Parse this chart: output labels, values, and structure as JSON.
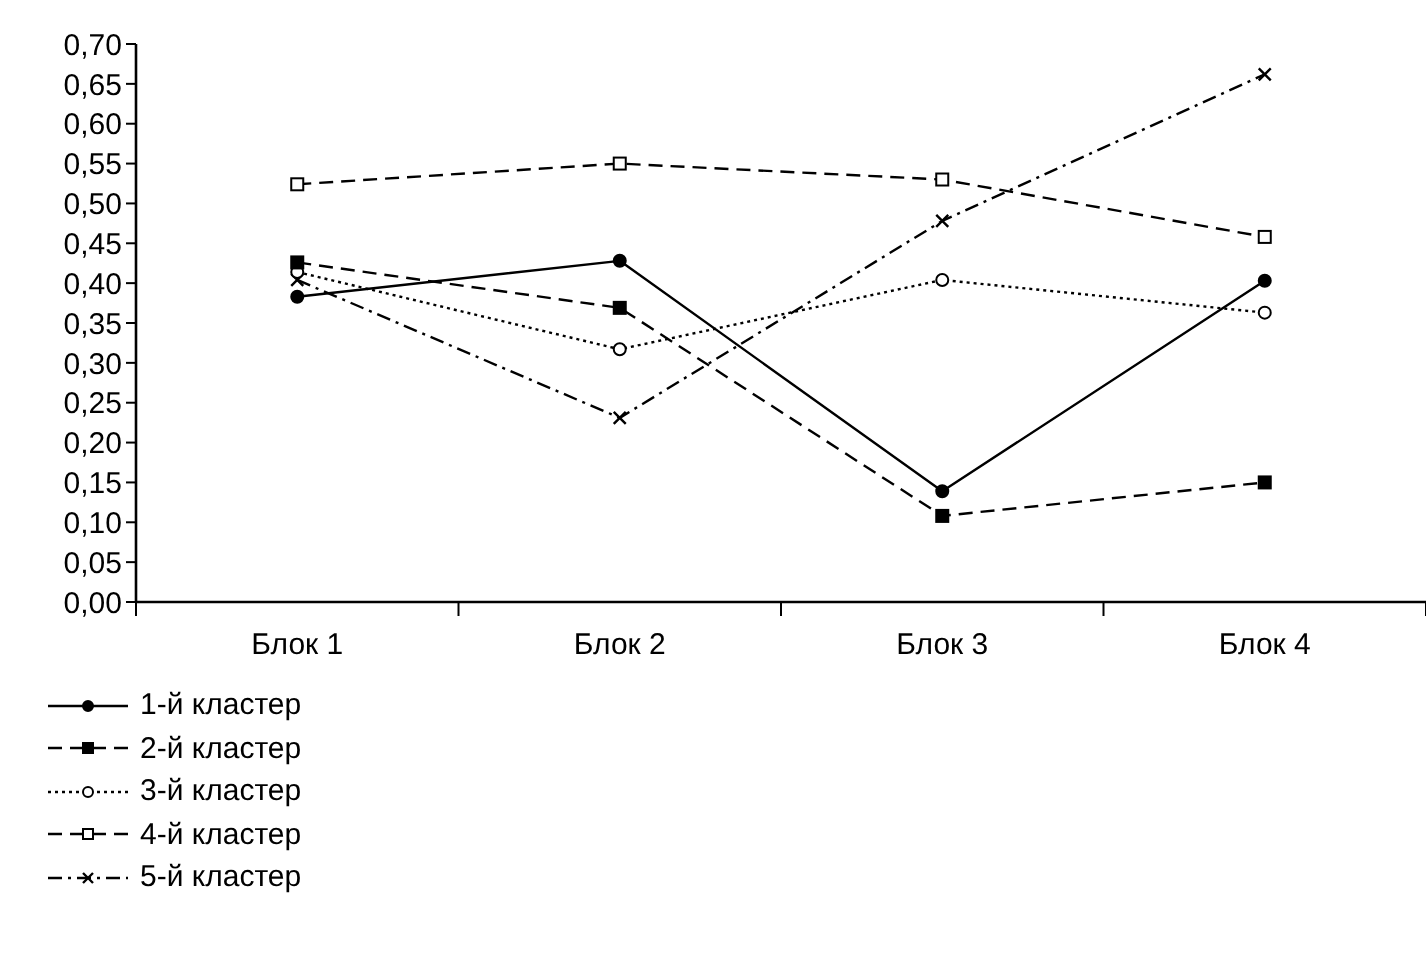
{
  "chart_data": {
    "type": "line",
    "categories": [
      "Блок 1",
      "Блок 2",
      "Блок 3",
      "Блок 4"
    ],
    "ylim": [
      0,
      0.7
    ],
    "yticks": [
      {
        "value": 0,
        "label": "0,00"
      },
      {
        "value": 0.05,
        "label": "0,05"
      },
      {
        "value": 0.1,
        "label": "0,10"
      },
      {
        "value": 0.15,
        "label": "0,15"
      },
      {
        "value": 0.2,
        "label": "0,20"
      },
      {
        "value": 0.25,
        "label": "0,25"
      },
      {
        "value": 0.3,
        "label": "0,30"
      },
      {
        "value": 0.35,
        "label": "0,35"
      },
      {
        "value": 0.4,
        "label": "0,40"
      },
      {
        "value": 0.45,
        "label": "0,45"
      },
      {
        "value": 0.5,
        "label": "0,50"
      },
      {
        "value": 0.55,
        "label": "0,55"
      },
      {
        "value": 0.6,
        "label": "0,60"
      },
      {
        "value": 0.65,
        "label": "0,65"
      },
      {
        "value": 0.7,
        "label": "0,70"
      }
    ],
    "grid": false,
    "legend": "bottom left",
    "series": [
      {
        "name": "1-й кластер",
        "color": "#000000",
        "marker": "circle",
        "line_style": "solid",
        "values": [
          0.383,
          0.428,
          0.139,
          0.403
        ]
      },
      {
        "name": "2-й кластер",
        "color": "#000000",
        "marker": "square",
        "line_style": "dashed",
        "values": [
          0.426,
          0.369,
          0.108,
          0.15
        ]
      },
      {
        "name": "3-й кластер",
        "color": "#000000",
        "marker": "circle-open",
        "line_style": "dotted",
        "values": [
          0.414,
          0.317,
          0.404,
          0.363
        ]
      },
      {
        "name": "4-й кластер",
        "color": "#000000",
        "marker": "square-open",
        "line_style": "dashed",
        "values": [
          0.524,
          0.55,
          0.53,
          0.458
        ]
      },
      {
        "name": "5-й кластер",
        "color": "#000000",
        "marker": "cross",
        "line_style": "dashdot",
        "values": [
          0.404,
          0.231,
          0.478,
          0.662
        ]
      }
    ]
  }
}
